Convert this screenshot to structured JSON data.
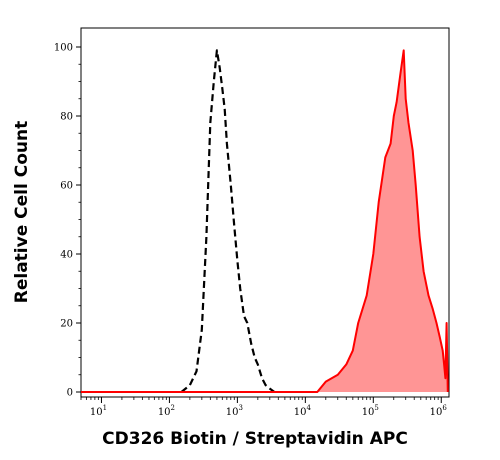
{
  "chart_data": {
    "type": "histogram",
    "title": "",
    "xlabel": "CD326 Biotin / Streptavidin APC",
    "ylabel": "Relative Cell Count",
    "x_scale": "log",
    "xlim": [
      5,
      1300000
    ],
    "ylim": [
      0,
      100
    ],
    "y_ticks": [
      {
        "value": 0,
        "label": "0"
      },
      {
        "value": 20,
        "label": "20"
      },
      {
        "value": 40,
        "label": "40"
      },
      {
        "value": 60,
        "label": "60"
      },
      {
        "value": 80,
        "label": "80"
      },
      {
        "value": 100,
        "label": "100"
      }
    ],
    "x_ticks": [
      {
        "value": 10,
        "base": "10",
        "exp": "1"
      },
      {
        "value": 100,
        "base": "10",
        "exp": "2"
      },
      {
        "value": 1000,
        "base": "10",
        "exp": "3"
      },
      {
        "value": 10000,
        "base": "10",
        "exp": "4"
      },
      {
        "value": 100000,
        "base": "10",
        "exp": "5"
      },
      {
        "value": 1000000,
        "base": "10",
        "exp": "6"
      }
    ],
    "grid": false,
    "legend": "none",
    "series": [
      {
        "style": "dashed",
        "color": "#000000",
        "fill": "none",
        "points": [
          [
            150,
            0
          ],
          [
            200,
            2
          ],
          [
            250,
            6
          ],
          [
            300,
            18
          ],
          [
            350,
            45
          ],
          [
            400,
            78
          ],
          [
            450,
            90
          ],
          [
            500,
            99
          ],
          [
            550,
            94
          ],
          [
            600,
            88
          ],
          [
            650,
            82
          ],
          [
            700,
            72
          ],
          [
            800,
            60
          ],
          [
            900,
            48
          ],
          [
            1000,
            38
          ],
          [
            1100,
            30
          ],
          [
            1250,
            22
          ],
          [
            1400,
            20
          ],
          [
            1600,
            14
          ],
          [
            1800,
            10
          ],
          [
            2000,
            8
          ],
          [
            2300,
            4
          ],
          [
            2600,
            2
          ],
          [
            3000,
            1
          ],
          [
            3500,
            0
          ]
        ]
      },
      {
        "style": "solid",
        "color": "#ff0000",
        "fill": "#ff8a8a",
        "points": [
          [
            5,
            0
          ],
          [
            15000,
            0
          ],
          [
            20000,
            3
          ],
          [
            30000,
            5
          ],
          [
            40000,
            8
          ],
          [
            50000,
            12
          ],
          [
            60000,
            20
          ],
          [
            80000,
            28
          ],
          [
            100000,
            40
          ],
          [
            120000,
            55
          ],
          [
            150000,
            68
          ],
          [
            180000,
            72
          ],
          [
            200000,
            80
          ],
          [
            220000,
            84
          ],
          [
            250000,
            92
          ],
          [
            280000,
            99
          ],
          [
            300000,
            85
          ],
          [
            330000,
            78
          ],
          [
            380000,
            70
          ],
          [
            420000,
            60
          ],
          [
            480000,
            45
          ],
          [
            550000,
            35
          ],
          [
            650000,
            28
          ],
          [
            750000,
            24
          ],
          [
            850000,
            20
          ],
          [
            950000,
            16
          ],
          [
            1050000,
            12
          ],
          [
            1100000,
            8
          ],
          [
            1150000,
            4
          ],
          [
            1200000,
            20
          ],
          [
            1250000,
            0
          ]
        ]
      }
    ]
  }
}
